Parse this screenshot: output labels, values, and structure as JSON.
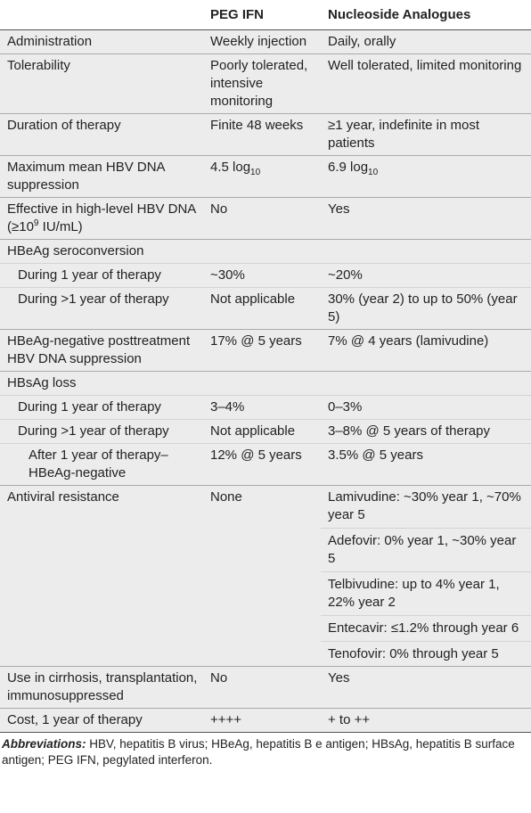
{
  "table": {
    "header": [
      "",
      "PEG IFN",
      "Nucleoside Analogues"
    ],
    "rows": [
      {
        "indent": 0,
        "cells": [
          [
            [
              "Administration"
            ]
          ],
          [
            [
              "Weekly injection"
            ]
          ],
          [
            [
              "Daily, orally"
            ]
          ]
        ]
      },
      {
        "indent": 0,
        "cells": [
          [
            [
              "Tolerability"
            ]
          ],
          [
            [
              "Poorly tolerated, intensive monitoring"
            ]
          ],
          [
            [
              "Well tolerated, limited monitoring"
            ]
          ]
        ]
      },
      {
        "indent": 0,
        "cells": [
          [
            [
              "Duration of therapy"
            ]
          ],
          [
            [
              "Finite 48 weeks"
            ]
          ],
          [
            [
              "≥1 year, indefinite in most patients"
            ]
          ]
        ]
      },
      {
        "indent": 0,
        "cells": [
          [
            [
              "Maximum mean HBV DNA suppression"
            ]
          ],
          [
            [
              "4.5 log",
              {
                "sub": "10"
              }
            ]
          ],
          [
            [
              "6.9 log",
              {
                "sub": "10"
              }
            ]
          ]
        ]
      },
      {
        "indent": 0,
        "cells": [
          [
            [
              "Effective in high-level HBV DNA (≥10",
              {
                "sup": "9"
              },
              " IU/mL)"
            ]
          ],
          [
            [
              "No"
            ]
          ],
          [
            [
              "Yes"
            ]
          ]
        ]
      },
      {
        "indent": 0,
        "cells": [
          [
            [
              "HBeAg seroconversion"
            ]
          ],
          [],
          []
        ]
      },
      {
        "indent": 1,
        "cells": [
          [
            [
              "During 1 year of therapy"
            ]
          ],
          [
            [
              "~30%"
            ]
          ],
          [
            [
              "~20%"
            ]
          ]
        ]
      },
      {
        "indent": 1,
        "cells": [
          [
            [
              "During >1 year of therapy"
            ]
          ],
          [
            [
              "Not applicable"
            ]
          ],
          [
            [
              "30% (year 2) to up to 50% (year 5)"
            ]
          ]
        ]
      },
      {
        "indent": 0,
        "cells": [
          [
            [
              "HBeAg-negative posttreatment HBV DNA suppression"
            ]
          ],
          [
            [
              "17% @ 5 years"
            ]
          ],
          [
            [
              "7% @ 4 years (lamivudine)"
            ]
          ]
        ]
      },
      {
        "indent": 0,
        "cells": [
          [
            [
              "HBsAg loss"
            ]
          ],
          [],
          []
        ]
      },
      {
        "indent": 1,
        "cells": [
          [
            [
              "During 1 year of therapy"
            ]
          ],
          [
            [
              "3–4%"
            ]
          ],
          [
            [
              "0–3%"
            ]
          ]
        ]
      },
      {
        "indent": 1,
        "cells": [
          [
            [
              "During >1 year of therapy"
            ]
          ],
          [
            [
              "Not applicable"
            ]
          ],
          [
            [
              "3–8% @ 5 years of therapy"
            ]
          ]
        ]
      },
      {
        "indent": 2,
        "cells": [
          [
            [
              "After 1 year of therapy–HBeAg-negative"
            ]
          ],
          [
            [
              "12% @ 5 years"
            ]
          ],
          [
            [
              "3.5% @ 5 years"
            ]
          ]
        ]
      },
      {
        "indent": 0,
        "cells": [
          [
            [
              "Antiviral resistance"
            ]
          ],
          [
            [
              "None"
            ]
          ],
          [
            [
              "Lamivudine: ~30% year 1, ~70% year 5"
            ],
            [
              "Adefovir: 0% year 1, ~30% year 5"
            ],
            [
              "Telbivudine: up to 4% year 1, 22% year 2"
            ],
            [
              "Entecavir: ≤1.2% through year 6"
            ],
            [
              "Tenofovir: 0% through year 5"
            ]
          ]
        ]
      },
      {
        "indent": 0,
        "cells": [
          [
            [
              "Use in cirrhosis, transplantation, immunosuppressed"
            ]
          ],
          [
            [
              "No"
            ]
          ],
          [
            [
              "Yes"
            ]
          ]
        ]
      },
      {
        "indent": 0,
        "cells": [
          [
            [
              "Cost, 1 year of therapy"
            ]
          ],
          [
            [
              "++++"
            ]
          ],
          [
            [
              "+ to ++"
            ]
          ]
        ]
      }
    ],
    "footnote": {
      "label": "Abbreviations:",
      "text": " HBV, hepatitis B virus; HBeAg, hepatitis B e antigen; HBsAg, hepatitis B surface antigen; PEG IFN, pegylated interferon."
    }
  }
}
